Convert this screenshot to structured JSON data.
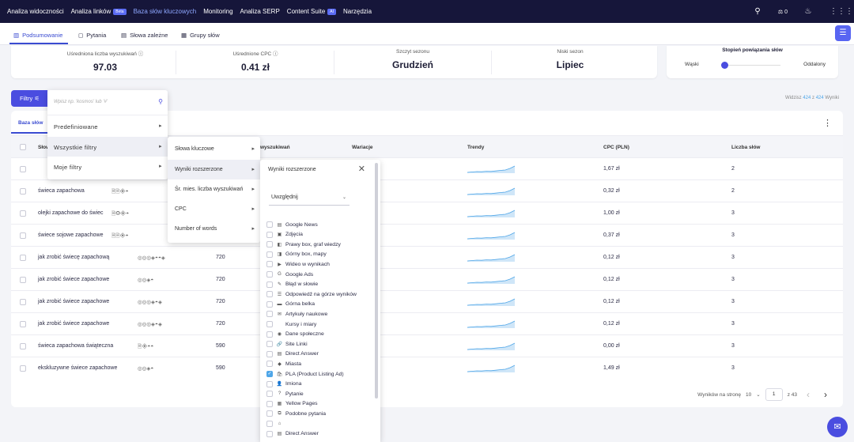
{
  "nav": {
    "items": [
      {
        "label": "Analiza widoczności",
        "active": false,
        "badge": ""
      },
      {
        "label": "Analiza linków",
        "active": false,
        "badge": "Beta"
      },
      {
        "label": "Baza słów kluczowych",
        "active": true,
        "badge": ""
      },
      {
        "label": "Monitoring",
        "active": false,
        "badge": ""
      },
      {
        "label": "Analiza SERP",
        "active": false,
        "badge": ""
      },
      {
        "label": "Content Suite",
        "active": false,
        "badge": "AI"
      },
      {
        "label": "Narzędzia",
        "active": false,
        "badge": ""
      }
    ],
    "counter": "0"
  },
  "subtabs": [
    "Podsumowanie",
    "Pytania",
    "Słowa zależne",
    "Grupy słów"
  ],
  "stats": [
    {
      "label": "Uśredniona liczba wyszukiwań",
      "value": "97.03"
    },
    {
      "label": "Uśrednione CPC",
      "value": "0.41 zł"
    },
    {
      "label": "Szczyt sezonu",
      "value": "Grudzień"
    },
    {
      "label": "Niski sezon",
      "value": "Lipiec"
    }
  ],
  "slider": {
    "title": "Stopień powiązania słów",
    "left": "Wąski",
    "right": "Oddalony",
    "level": 0
  },
  "filter_button": "Filtry",
  "results": {
    "prefix": "Widzisz",
    "shown": "424",
    "sep": "z",
    "total": "424",
    "suffix": "Wyniki"
  },
  "main_tab": "Baza słów",
  "columns": {
    "keyword": "Słow",
    "searches": "wyszukiwań",
    "variants": "Wariacje",
    "trends": "Trendy",
    "cpc": "CPC (PLN)",
    "count": "Liczba słów"
  },
  "rows": [
    {
      "keyword": "",
      "icons": "",
      "searches": "",
      "cpc": "1,67 zł",
      "count": "2"
    },
    {
      "keyword": "świeca zapachowa",
      "icons": "🗎🗎◈◓",
      "searches": "",
      "cpc": "0,32 zł",
      "count": "2"
    },
    {
      "keyword": "olejki zapachowe do świec",
      "icons": "🗎◎◈◓",
      "searches": "",
      "cpc": "1,00 zł",
      "count": "3"
    },
    {
      "keyword": "świece sojowe zapachowe",
      "icons": "🗎🗎◈◓",
      "searches": "",
      "cpc": "0,37 zł",
      "count": "3"
    },
    {
      "keyword": "jak zrobić świecę zapachową",
      "icons": "◎◎◎◈◓◓◈",
      "searches": "720",
      "cpc": "0,12 zł",
      "count": "3"
    },
    {
      "keyword": "jak zrobić świece zapachowe",
      "icons": "◎◎◈◓",
      "searches": "720",
      "cpc": "0,12 zł",
      "count": "3"
    },
    {
      "keyword": "jak zrobić świece zapachowe",
      "icons": "◎◎◎◈◓◈",
      "searches": "720",
      "cpc": "0,12 zł",
      "count": "3"
    },
    {
      "keyword": "jak zrobić świece zapachowe",
      "icons": "◎◎◎◈◓◈",
      "searches": "720",
      "cpc": "0,12 zł",
      "count": "3"
    },
    {
      "keyword": "świeca zapachowa świąteczna",
      "icons": "🗎◈◓◓",
      "searches": "590",
      "cpc": "0,00 zł",
      "count": "3"
    },
    {
      "keyword": "ekskluzywne świece zapachowe",
      "icons": "◎◎◈◓",
      "searches": "590",
      "cpc": "1,49 zł",
      "count": "3"
    }
  ],
  "pager": {
    "label": "Wyników na stronę",
    "per_page": "10",
    "page": "1",
    "of": "z 43"
  },
  "dd1": {
    "placeholder": "Wpisz np. 'kosmos' lub '#'",
    "items": [
      "Predefiniowane",
      "Wszystkie filtry",
      "Moje filtry"
    ]
  },
  "dd2": {
    "items": [
      "Słowa kluczowe",
      "Wyniki rozszerzone",
      "Śr. mies. liczba wyszukiwań",
      "CPC",
      "Number of words"
    ]
  },
  "dd3": {
    "title": "Wyniki rozszerzone",
    "select_value": "Uwzględnij",
    "options": [
      {
        "label": "Google News",
        "icon": "▤",
        "checked": false
      },
      {
        "label": "Zdjęcia",
        "icon": "▣",
        "checked": false
      },
      {
        "label": "Prawy box, graf wiedzy",
        "icon": "◧",
        "checked": false
      },
      {
        "label": "Górny box, mapy",
        "icon": "◨",
        "checked": false
      },
      {
        "label": "Wideo w wynikach",
        "icon": "▶",
        "checked": false
      },
      {
        "label": "Google Ads",
        "icon": "G",
        "checked": false
      },
      {
        "label": "Błąd w słowie",
        "icon": "✎",
        "checked": false
      },
      {
        "label": "Odpowiedź na górze wyników",
        "icon": "☰",
        "checked": false
      },
      {
        "label": "Górna belka",
        "icon": "▬",
        "checked": false
      },
      {
        "label": "Artykuły naukowe",
        "icon": "✉",
        "checked": false
      },
      {
        "label": "Kursy i miary",
        "icon": "",
        "checked": false
      },
      {
        "label": "Dane społeczne",
        "icon": "◉",
        "checked": false
      },
      {
        "label": "Site Linki",
        "icon": "🔗",
        "checked": false
      },
      {
        "label": "Direct Answer",
        "icon": "▤",
        "checked": false
      },
      {
        "label": "Miasta",
        "icon": "◆",
        "checked": false
      },
      {
        "label": "PLA (Product Listing Ad)",
        "icon": "🛍",
        "checked": true
      },
      {
        "label": "Imiona",
        "icon": "👤",
        "checked": false
      },
      {
        "label": "Pytanie",
        "icon": "?",
        "checked": false
      },
      {
        "label": "Yellow Pages",
        "icon": "▦",
        "checked": false
      },
      {
        "label": "Podobne pytania",
        "icon": "⧉",
        "checked": false
      },
      {
        "label": "",
        "icon": "⌂",
        "checked": false
      },
      {
        "label": "Direct Answer",
        "icon": "▤",
        "checked": false
      }
    ]
  }
}
